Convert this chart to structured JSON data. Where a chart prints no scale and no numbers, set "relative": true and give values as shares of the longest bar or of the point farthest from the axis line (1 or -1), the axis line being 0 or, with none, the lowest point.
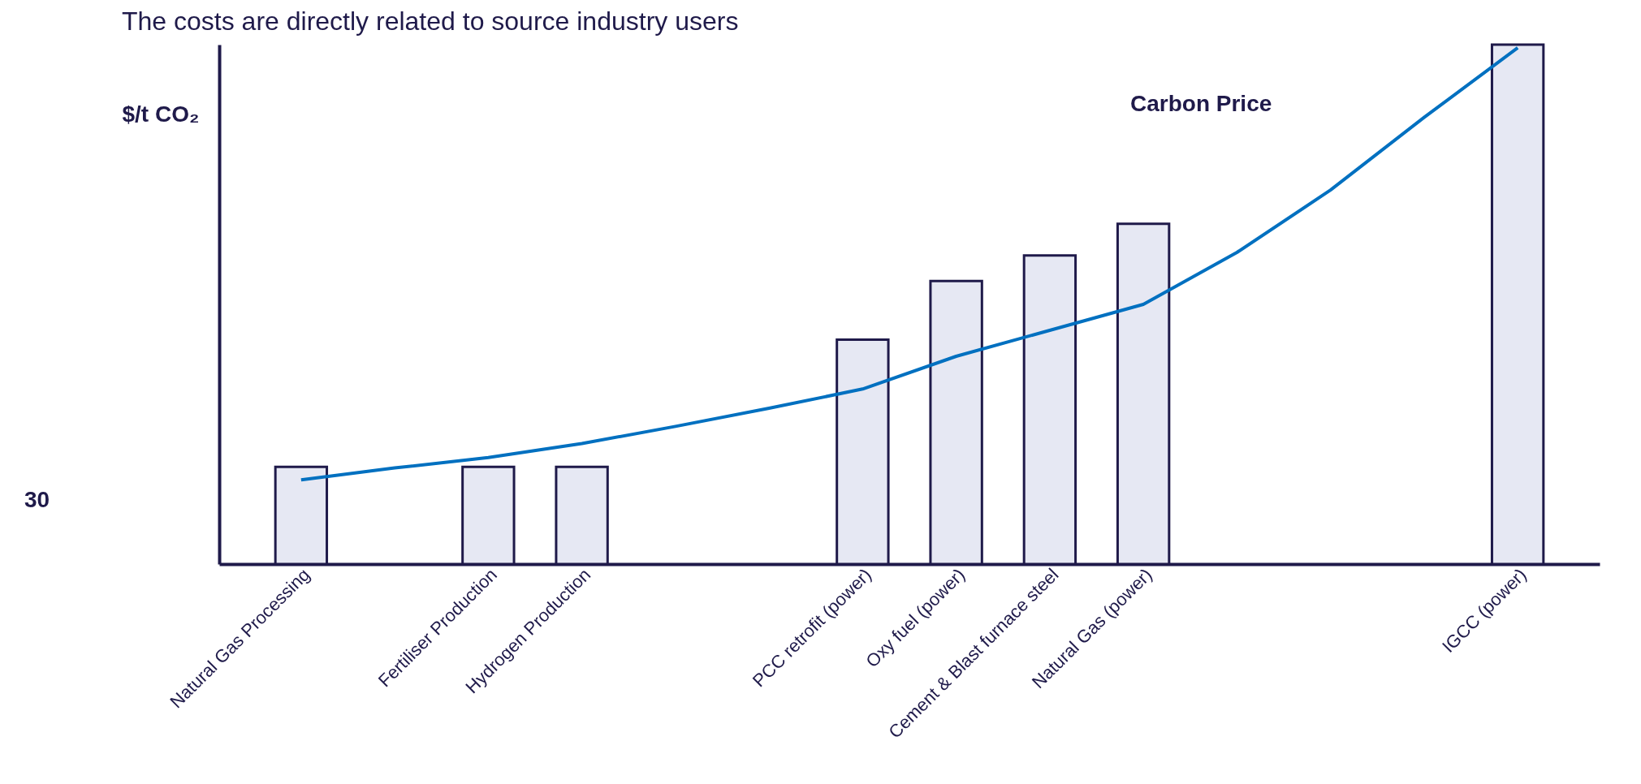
{
  "chart_data": {
    "type": "bar",
    "title": "The costs are directly related to source industry users",
    "ylabel": "$/t CO₂",
    "relative": true,
    "categories": [
      "Natural Gas Processing",
      null,
      "Fertiliser Production",
      "Hydrogen Production",
      null,
      null,
      "PCC retrofit (power)",
      "Oxy fuel (power)",
      "Cement & Blast furnace steel",
      "Natural Gas (power)",
      null,
      null,
      null,
      "IGCC (power)"
    ],
    "series": [
      {
        "color": "#e6e8f3",
        "values": [
          0.187,
          null,
          0.187,
          0.187,
          null,
          null,
          0.432,
          0.545,
          0.594,
          0.655,
          null,
          null,
          null,
          1.0
        ]
      },
      {
        "name": "Carbon Price",
        "type": "line",
        "color": "#0070c0",
        "values": [
          0.162,
          0.185,
          0.205,
          0.232,
          0.265,
          0.3,
          0.337,
          0.4,
          0.45,
          0.5,
          0.6,
          0.72,
          0.86,
          0.994
        ]
      }
    ],
    "annotations": [
      "30"
    ]
  }
}
